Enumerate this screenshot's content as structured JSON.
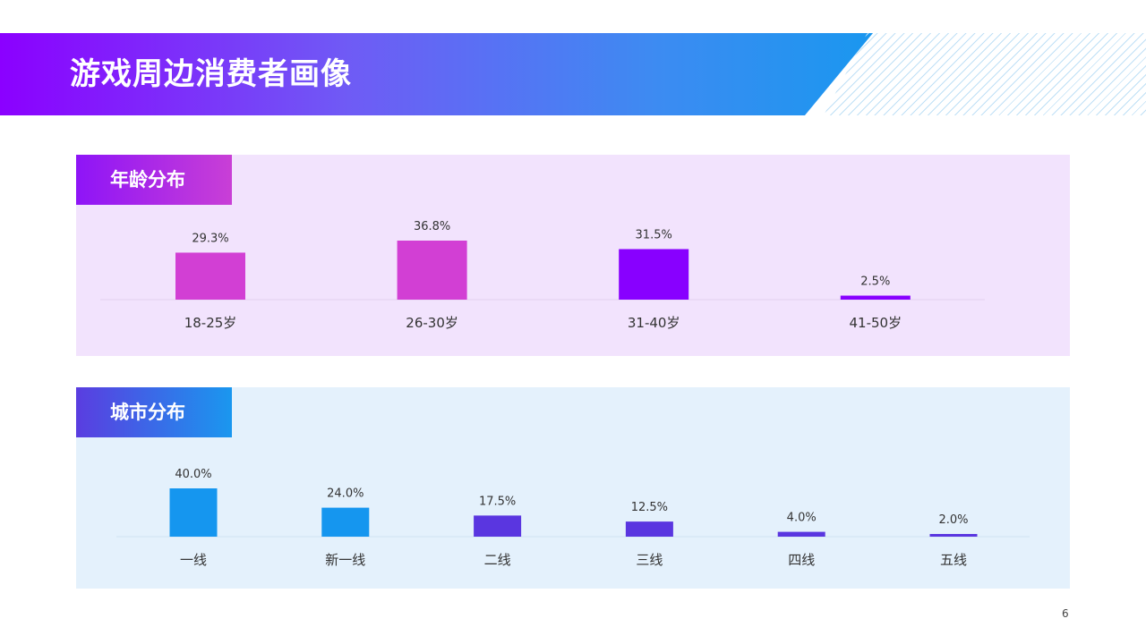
{
  "page": {
    "title": "游戏周边消费者画像",
    "page_number": "6"
  },
  "colors": {
    "age_bar_pink": "#d23fd4",
    "age_bar_purple": "#8800ff",
    "city_bar_blue": "#1596ef",
    "city_bar_indigo": "#5a36e0"
  },
  "chart_data": [
    {
      "type": "bar",
      "title": "年龄分布",
      "categories": [
        "18-25岁",
        "26-30岁",
        "31-40岁",
        "41-50岁"
      ],
      "values": [
        29.3,
        36.8,
        31.5,
        2.5
      ],
      "value_labels": [
        "29.3%",
        "36.8%",
        "31.5%",
        "2.5%"
      ],
      "unit": "%",
      "bar_colors": [
        "#d23fd4",
        "#d23fd4",
        "#8800ff",
        "#8800ff"
      ],
      "xlabel": "",
      "ylabel": "",
      "ylim": [
        0,
        36.8
      ]
    },
    {
      "type": "bar",
      "title": "城市分布",
      "categories": [
        "一线",
        "新一线",
        "二线",
        "三线",
        "四线",
        "五线"
      ],
      "values": [
        40.0,
        24.0,
        17.5,
        12.5,
        4.0,
        2.0
      ],
      "value_labels": [
        "40.0%",
        "24.0%",
        "17.5%",
        "12.5%",
        "4.0%",
        "2.0%"
      ],
      "unit": "%",
      "bar_colors": [
        "#1596ef",
        "#1596ef",
        "#5a36e0",
        "#5a36e0",
        "#5a36e0",
        "#5a36e0"
      ],
      "xlabel": "",
      "ylabel": "",
      "ylim": [
        0,
        40.0
      ]
    }
  ]
}
